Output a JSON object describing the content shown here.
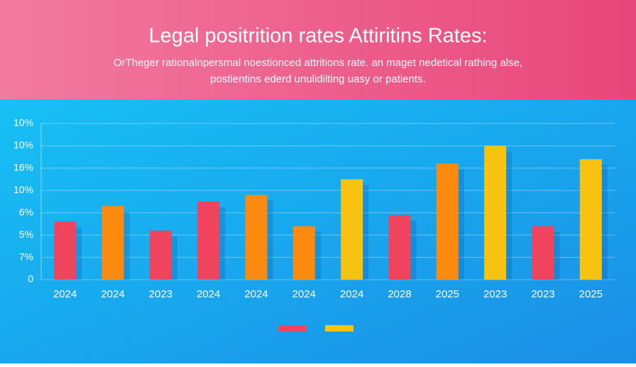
{
  "chart_data": {
    "type": "bar",
    "title": "Legal positrition rates Attiritins Rates:",
    "subtitle": [
      "OrTheger rationalnpersmal noestionced attritions rate. an maget nedetical rathing alse,",
      "postientins ederd unulidilting uasy or patients."
    ],
    "categories": [
      "2024",
      "2024",
      "2023",
      "2024",
      "2024",
      "2024",
      "2024",
      "2028",
      "2025",
      "2023",
      "2023",
      "2025"
    ],
    "values": [
      2.6,
      3.3,
      2.2,
      3.5,
      3.8,
      2.4,
      4.5,
      2.9,
      5.2,
      6.0,
      2.4,
      5.4
    ],
    "colors": [
      "#f0435e",
      "#fb8a0e",
      "#f0435e",
      "#f0435e",
      "#fb8a0e",
      "#fb8a0e",
      "#f8c210",
      "#f0435e",
      "#fb8a0e",
      "#f8c210",
      "#f0435e",
      "#f8c210"
    ],
    "ylim": [
      0,
      7
    ],
    "yticks": [
      0,
      {
        "value": 1,
        "label": "7%"
      },
      {
        "value": 2,
        "label": "5%"
      },
      {
        "value": 3,
        "label": "6%"
      },
      {
        "value": 4,
        "label": "10%"
      },
      {
        "value": 5,
        "label": "16%"
      },
      {
        "value": 6,
        "label": "10%"
      },
      {
        "value": 7,
        "label": "10%"
      }
    ],
    "grid": true
  }
}
